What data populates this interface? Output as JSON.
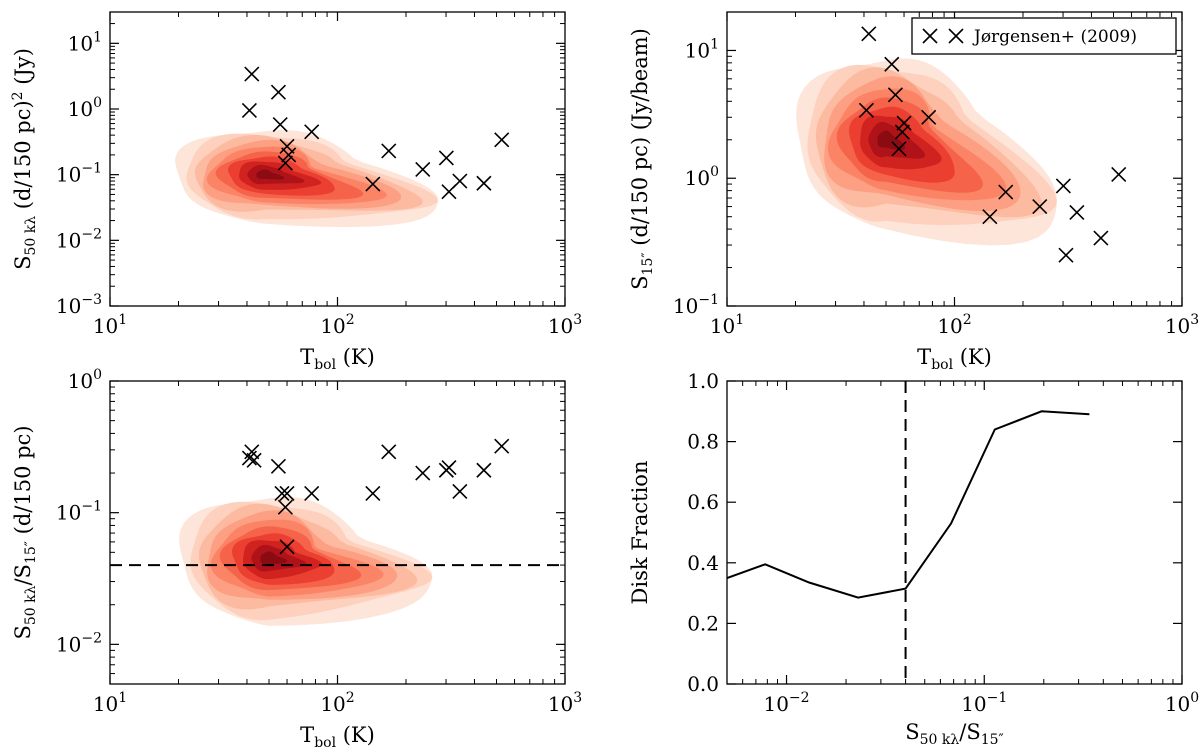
{
  "chart_data": [
    {
      "id": "p1",
      "type": "scatter",
      "xscale": "log",
      "yscale": "log",
      "xlim": [
        10,
        1000
      ],
      "ylim": [
        0.001,
        30
      ],
      "xlabel": "T_bol (K)",
      "ylabel": "S_50kλ (d/150 pc)^2 (Jy)",
      "xticks": [
        {
          "v": 10,
          "base": "10",
          "exp": "1"
        },
        {
          "v": 100,
          "base": "10",
          "exp": "2"
        },
        {
          "v": 1000,
          "base": "10",
          "exp": "3"
        }
      ],
      "yticks": [
        {
          "v": 0.001,
          "base": "10",
          "exp": "−3"
        },
        {
          "v": 0.01,
          "base": "10",
          "exp": "−2"
        },
        {
          "v": 0.1,
          "base": "10",
          "exp": "−1"
        },
        {
          "v": 1,
          "base": "10",
          "exp": "0"
        },
        {
          "v": 10,
          "base": "10",
          "exp": "1"
        }
      ],
      "density": {
        "center": [
          48,
          0.1
        ],
        "spread_x": 0.18,
        "spread_y": 0.32,
        "tail_to": [
          300,
          0.05
        ]
      },
      "points": [
        [
          42,
          3.4
        ],
        [
          41,
          0.95
        ],
        [
          55,
          1.8
        ],
        [
          56,
          0.58
        ],
        [
          60,
          0.27
        ],
        [
          61,
          0.2
        ],
        [
          59,
          0.15
        ],
        [
          77,
          0.45
        ],
        [
          143,
          0.072
        ],
        [
          168,
          0.23
        ],
        [
          237,
          0.12
        ],
        [
          301,
          0.18
        ],
        [
          309,
          0.055
        ],
        [
          345,
          0.08
        ],
        [
          440,
          0.074
        ],
        [
          527,
          0.34
        ]
      ]
    },
    {
      "id": "p2",
      "type": "scatter",
      "xscale": "log",
      "yscale": "log",
      "xlim": [
        10,
        1000
      ],
      "ylim": [
        0.1,
        20
      ],
      "xlabel": "T_bol (K)",
      "ylabel": "S_15″ (d/150 pc) (Jy/beam)",
      "xticks": [
        {
          "v": 10,
          "base": "10",
          "exp": "1"
        },
        {
          "v": 100,
          "base": "10",
          "exp": "2"
        },
        {
          "v": 1000,
          "base": "10",
          "exp": "3"
        }
      ],
      "yticks": [
        {
          "v": 0.1,
          "base": "10",
          "exp": "−1"
        },
        {
          "v": 1,
          "base": "10",
          "exp": "0"
        },
        {
          "v": 10,
          "base": "10",
          "exp": "1"
        }
      ],
      "legend": {
        "label": "Jørgensen+ (2009)",
        "placement": "top-right"
      },
      "density": {
        "center": [
          50,
          2.0
        ],
        "spread_x": 0.18,
        "spread_y": 0.3,
        "tail_to": [
          300,
          0.5
        ]
      },
      "points": [
        [
          42,
          13.5
        ],
        [
          53,
          7.8
        ],
        [
          55,
          4.5
        ],
        [
          41,
          3.4
        ],
        [
          60,
          2.7
        ],
        [
          59,
          2.3
        ],
        [
          77,
          3.0
        ],
        [
          57,
          1.7
        ],
        [
          143,
          0.5
        ],
        [
          168,
          0.78
        ],
        [
          237,
          0.6
        ],
        [
          301,
          0.87
        ],
        [
          309,
          0.25
        ],
        [
          345,
          0.54
        ],
        [
          440,
          0.34
        ],
        [
          527,
          1.07
        ]
      ]
    },
    {
      "id": "p3",
      "type": "scatter",
      "xscale": "log",
      "yscale": "log",
      "xlim": [
        10,
        1000
      ],
      "ylim": [
        0.005,
        1
      ],
      "xlabel": "T_bol (K)",
      "ylabel": "S_50kλ/S_15″ (d/150 pc)",
      "xticks": [
        {
          "v": 10,
          "base": "10",
          "exp": "1"
        },
        {
          "v": 100,
          "base": "10",
          "exp": "2"
        },
        {
          "v": 1000,
          "base": "10",
          "exp": "3"
        }
      ],
      "yticks": [
        {
          "v": 0.01,
          "base": "10",
          "exp": "−2"
        },
        {
          "v": 0.1,
          "base": "10",
          "exp": "−1"
        },
        {
          "v": 1,
          "base": "10",
          "exp": "0"
        }
      ],
      "hline": 0.04,
      "density": {
        "center": [
          50,
          0.045
        ],
        "spread_x": 0.18,
        "spread_y": 0.22,
        "tail_to": [
          260,
          0.06
        ]
      },
      "points": [
        [
          42,
          0.29
        ],
        [
          41,
          0.26
        ],
        [
          43,
          0.25
        ],
        [
          55,
          0.225
        ],
        [
          57,
          0.14
        ],
        [
          60,
          0.14
        ],
        [
          59,
          0.11
        ],
        [
          77,
          0.14
        ],
        [
          60,
          0.055
        ],
        [
          143,
          0.14
        ],
        [
          168,
          0.29
        ],
        [
          237,
          0.2
        ],
        [
          301,
          0.21
        ],
        [
          309,
          0.22
        ],
        [
          345,
          0.145
        ],
        [
          440,
          0.21
        ],
        [
          527,
          0.32
        ]
      ]
    },
    {
      "id": "p4",
      "type": "line",
      "xscale": "log",
      "yscale": "linear",
      "xlim": [
        0.005,
        1
      ],
      "ylim": [
        0,
        1
      ],
      "xlabel": "S_50kλ/S_15″",
      "ylabel": "Disk Fraction",
      "xticks": [
        {
          "v": 0.01,
          "base": "10",
          "exp": "−2"
        },
        {
          "v": 0.1,
          "base": "10",
          "exp": "−1"
        },
        {
          "v": 1,
          "base": "10",
          "exp": "0"
        }
      ],
      "yticks": [
        {
          "v": 0.0,
          "label": "0.0"
        },
        {
          "v": 0.2,
          "label": "0.2"
        },
        {
          "v": 0.4,
          "label": "0.4"
        },
        {
          "v": 0.6,
          "label": "0.6"
        },
        {
          "v": 0.8,
          "label": "0.8"
        },
        {
          "v": 1.0,
          "label": "1.0"
        }
      ],
      "vline": 0.04,
      "x": [
        0.005,
        0.0078,
        0.013,
        0.023,
        0.04,
        0.068,
        0.113,
        0.195,
        0.34
      ],
      "y": [
        0.35,
        0.395,
        0.335,
        0.285,
        0.315,
        0.53,
        0.84,
        0.9,
        0.89
      ]
    }
  ]
}
